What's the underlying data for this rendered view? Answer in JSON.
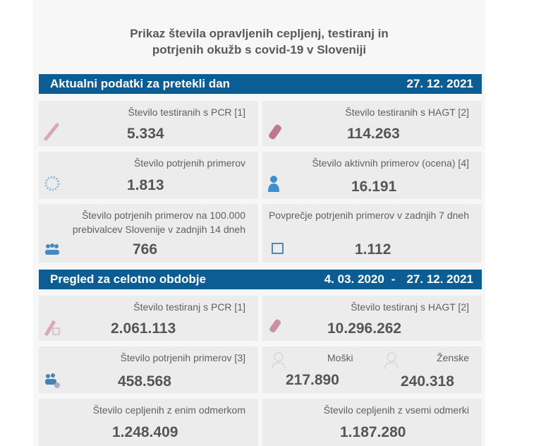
{
  "title_line1": "Prikaz števila opravljenih cepljenj, testiranj in",
  "title_line2": "potrjenih okužb s covid-19 v Sloveniji",
  "daily": {
    "header": "Aktualni podatki za pretekli dan",
    "date": "27. 12. 2021",
    "cards": [
      {
        "label": "Število testiranih s PCR [1]",
        "value": "5.334",
        "icon": "test-tube-icon"
      },
      {
        "label": "Število testiranih s HAGT [2]",
        "value": "114.263",
        "icon": "rapid-test-icon"
      },
      {
        "label": "Število potrjenih primerov",
        "value": "1.813",
        "icon": "virus-icon"
      },
      {
        "label": "Število aktivnih primerov (ocena) [4]",
        "value": "16.191",
        "icon": "person-icon"
      },
      {
        "label": "Število potrjenih primerov na 100.000 prebivalcev Slovenije v zadnjih 14 dneh",
        "value": "766",
        "icon": "group-icon"
      },
      {
        "label": "Povprečje potrjenih primerov v zadnjih 7 dneh",
        "value": "1.112",
        "icon": "calendar-icon"
      }
    ]
  },
  "total": {
    "header": "Pregled za celotno obdobje",
    "date_from": "4. 03. 2020",
    "sep": "-",
    "date_to": "27. 12. 2021",
    "cards": [
      {
        "label": "Število testiranj s PCR [1]",
        "value": "2.061.113"
      },
      {
        "label": "Število testiranj s HAGT [2]",
        "value": "10.296.262"
      },
      {
        "label": "Število potrjenih primerov [3]",
        "value": "458.568"
      },
      {
        "label": "Število cepljenih z enim odmerkom",
        "value": "1.248.409"
      },
      {
        "label": "Število cepljenih z vsemi odmerki",
        "value": "1.187.280"
      }
    ],
    "male_label": "Moški",
    "male_value": "217.890",
    "female_label": "Ženske",
    "female_value": "240.318"
  }
}
